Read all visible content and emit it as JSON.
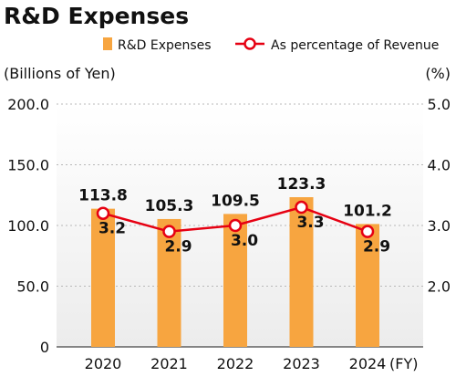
{
  "chart_data": {
    "type": "bar",
    "title": "R&D Expenses",
    "categories": [
      "2020",
      "2021",
      "2022",
      "2023",
      "2024"
    ],
    "x_unit_suffix": "(FY)",
    "series": [
      {
        "name": "R&D Expenses",
        "kind": "bar",
        "axis": "left",
        "color": "#F7A540",
        "values": [
          113.8,
          105.3,
          109.5,
          123.3,
          101.2
        ],
        "labels": [
          "113.8",
          "105.3",
          "109.5",
          "123.3",
          "101.2"
        ]
      },
      {
        "name": "As percentage of Revenue",
        "kind": "line",
        "axis": "right",
        "color": "#E60012",
        "values": [
          3.2,
          2.9,
          3.0,
          3.3,
          2.9
        ],
        "labels": [
          "3.2",
          "2.9",
          "3.0",
          "3.3",
          "2.9"
        ]
      }
    ],
    "ylabel_left": "(Billions of Yen)",
    "ylabel_right": "(%)",
    "ylim_left": [
      0,
      200
    ],
    "ylim_right": [
      1.0,
      5.0
    ],
    "y_ticks_left": [
      "0",
      "50.0",
      "100.0",
      "150.0",
      "200.0"
    ],
    "y_ticks_right": [
      "2.0",
      "3.0",
      "4.0",
      "5.0"
    ],
    "y_tick_values_right": [
      2.0,
      3.0,
      4.0,
      5.0
    ],
    "grid": "dashed horizontal",
    "legend_position": "top"
  }
}
